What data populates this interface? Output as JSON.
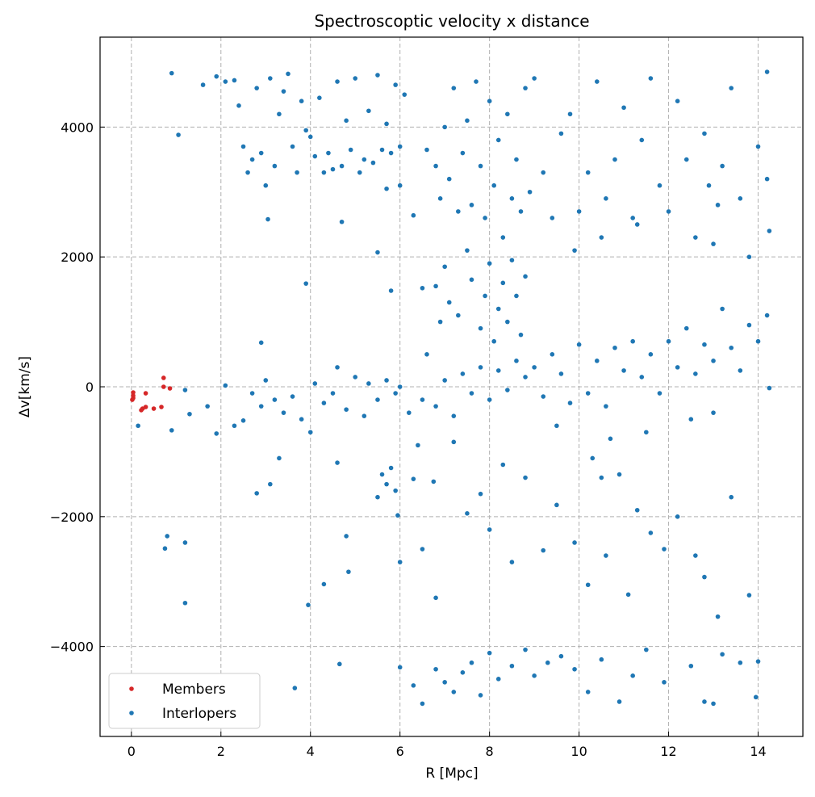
{
  "chart_data": {
    "type": "scatter",
    "title": "Spectroscoptic velocity x distance",
    "xlabel": "R [Mpc]",
    "ylabel": "Δv[km/s]",
    "xlim": [
      -0.7,
      15.0
    ],
    "ylim": [
      -5385,
      5385
    ],
    "xticks": [
      0,
      2,
      4,
      6,
      8,
      10,
      12,
      14
    ],
    "yticks": [
      -4000,
      -2000,
      0,
      2000,
      4000
    ],
    "grid": true,
    "legend": "lower-left",
    "series": [
      {
        "name": "Members",
        "color": "#d62728",
        "points": [
          [
            0.72,
            137
          ],
          [
            0.72,
            0
          ],
          [
            0.86,
            -25
          ],
          [
            0.04,
            -87
          ],
          [
            0.04,
            -137
          ],
          [
            0.02,
            -200
          ],
          [
            0.04,
            -174
          ],
          [
            0.32,
            -100
          ],
          [
            0.22,
            -360
          ],
          [
            0.25,
            -336
          ],
          [
            0.32,
            -311
          ],
          [
            0.5,
            -336
          ],
          [
            0.67,
            -311
          ]
        ]
      },
      {
        "name": "Interlopers",
        "color": "#1f77b4",
        "points": [
          [
            0.9,
            4830
          ],
          [
            1.05,
            3880
          ],
          [
            1.6,
            4650
          ],
          [
            1.9,
            4780
          ],
          [
            2.1,
            4700
          ],
          [
            2.3,
            4720
          ],
          [
            2.4,
            4330
          ],
          [
            2.5,
            3700
          ],
          [
            2.6,
            3300
          ],
          [
            2.7,
            3500
          ],
          [
            2.8,
            4600
          ],
          [
            2.9,
            3600
          ],
          [
            3.0,
            3100
          ],
          [
            3.1,
            4750
          ],
          [
            3.2,
            3400
          ],
          [
            3.3,
            4200
          ],
          [
            3.4,
            4550
          ],
          [
            3.5,
            4820
          ],
          [
            3.6,
            3700
          ],
          [
            3.7,
            3300
          ],
          [
            3.8,
            4400
          ],
          [
            3.9,
            3950
          ],
          [
            4.0,
            3850
          ],
          [
            4.1,
            3550
          ],
          [
            4.2,
            4450
          ],
          [
            4.3,
            3300
          ],
          [
            4.4,
            3600
          ],
          [
            4.5,
            3350
          ],
          [
            4.6,
            4700
          ],
          [
            4.7,
            3400
          ],
          [
            4.8,
            4100
          ],
          [
            4.9,
            3650
          ],
          [
            5.0,
            4750
          ],
          [
            5.1,
            3300
          ],
          [
            5.2,
            3500
          ],
          [
            5.3,
            4250
          ],
          [
            5.4,
            3450
          ],
          [
            5.5,
            4800
          ],
          [
            5.6,
            3650
          ],
          [
            5.7,
            4050
          ],
          [
            5.8,
            3600
          ],
          [
            5.9,
            4650
          ],
          [
            6.0,
            3700
          ],
          [
            6.1,
            4500
          ],
          [
            6.0,
            3100
          ],
          [
            5.7,
            3050
          ],
          [
            3.05,
            2580
          ],
          [
            4.7,
            2540
          ],
          [
            3.9,
            1590
          ],
          [
            5.5,
            2070
          ],
          [
            5.8,
            1480
          ],
          [
            2.9,
            680
          ],
          [
            6.3,
            2640
          ],
          [
            6.5,
            1520
          ],
          [
            6.6,
            3650
          ],
          [
            6.8,
            3400
          ],
          [
            6.9,
            2900
          ],
          [
            7.0,
            4000
          ],
          [
            7.1,
            3200
          ],
          [
            7.2,
            4600
          ],
          [
            7.3,
            2700
          ],
          [
            7.4,
            3600
          ],
          [
            7.5,
            4100
          ],
          [
            7.6,
            2800
          ],
          [
            7.7,
            4700
          ],
          [
            7.8,
            3400
          ],
          [
            7.9,
            2600
          ],
          [
            8.0,
            4400
          ],
          [
            8.1,
            3100
          ],
          [
            8.2,
            3800
          ],
          [
            8.3,
            2300
          ],
          [
            8.4,
            4200
          ],
          [
            8.5,
            2900
          ],
          [
            8.6,
            3500
          ],
          [
            8.7,
            2700
          ],
          [
            8.8,
            4600
          ],
          [
            8.9,
            3000
          ],
          [
            9.0,
            4750
          ],
          [
            9.2,
            3300
          ],
          [
            9.4,
            2600
          ],
          [
            9.6,
            3900
          ],
          [
            9.8,
            4200
          ],
          [
            10.0,
            2700
          ],
          [
            10.2,
            3300
          ],
          [
            10.4,
            4700
          ],
          [
            10.6,
            2900
          ],
          [
            10.8,
            3500
          ],
          [
            11.0,
            4300
          ],
          [
            11.2,
            2600
          ],
          [
            11.4,
            3800
          ],
          [
            11.6,
            4750
          ],
          [
            11.8,
            3100
          ],
          [
            12.0,
            2700
          ],
          [
            12.2,
            4400
          ],
          [
            12.4,
            3500
          ],
          [
            12.6,
            2300
          ],
          [
            12.8,
            3900
          ],
          [
            13.0,
            2200
          ],
          [
            13.2,
            3400
          ],
          [
            13.4,
            4600
          ],
          [
            13.6,
            2900
          ],
          [
            13.8,
            2000
          ],
          [
            14.0,
            3700
          ],
          [
            14.2,
            4850
          ],
          [
            14.25,
            2400
          ],
          [
            14.2,
            3200
          ],
          [
            13.1,
            2800
          ],
          [
            12.9,
            3100
          ],
          [
            11.3,
            2500
          ],
          [
            10.5,
            2300
          ],
          [
            9.9,
            2100
          ],
          [
            7.0,
            1850
          ],
          [
            7.1,
            1300
          ],
          [
            7.3,
            1100
          ],
          [
            7.5,
            2100
          ],
          [
            7.6,
            1650
          ],
          [
            7.8,
            900
          ],
          [
            7.9,
            1400
          ],
          [
            8.0,
            1900
          ],
          [
            8.1,
            700
          ],
          [
            8.2,
            1200
          ],
          [
            8.3,
            1600
          ],
          [
            8.4,
            1000
          ],
          [
            8.5,
            1950
          ],
          [
            8.6,
            1400
          ],
          [
            8.7,
            800
          ],
          [
            8.8,
            1700
          ],
          [
            6.8,
            1550
          ],
          [
            6.9,
            1000
          ],
          [
            1.2,
            -50
          ],
          [
            1.3,
            -420
          ],
          [
            1.7,
            -300
          ],
          [
            1.9,
            -720
          ],
          [
            2.1,
            20
          ],
          [
            2.3,
            -600
          ],
          [
            2.5,
            -520
          ],
          [
            2.7,
            -100
          ],
          [
            2.9,
            -300
          ],
          [
            3.0,
            100
          ],
          [
            3.2,
            -200
          ],
          [
            3.4,
            -400
          ],
          [
            3.6,
            -150
          ],
          [
            3.8,
            -500
          ],
          [
            4.0,
            -700
          ],
          [
            4.1,
            50
          ],
          [
            4.3,
            -250
          ],
          [
            4.5,
            -100
          ],
          [
            4.6,
            300
          ],
          [
            4.8,
            -350
          ],
          [
            5.0,
            150
          ],
          [
            5.2,
            -450
          ],
          [
            5.3,
            50
          ],
          [
            5.5,
            -200
          ],
          [
            5.7,
            100
          ],
          [
            5.9,
            -100
          ],
          [
            6.0,
            0
          ],
          [
            6.2,
            -400
          ],
          [
            6.4,
            -900
          ],
          [
            6.5,
            -200
          ],
          [
            6.6,
            500
          ],
          [
            6.8,
            -300
          ],
          [
            7.0,
            100
          ],
          [
            7.2,
            -450
          ],
          [
            7.4,
            200
          ],
          [
            7.6,
            -100
          ],
          [
            7.8,
            300
          ],
          [
            8.0,
            -200
          ],
          [
            8.2,
            250
          ],
          [
            8.4,
            -50
          ],
          [
            8.6,
            400
          ],
          [
            8.8,
            150
          ],
          [
            9.0,
            300
          ],
          [
            9.2,
            -150
          ],
          [
            9.4,
            500
          ],
          [
            9.6,
            200
          ],
          [
            9.8,
            -250
          ],
          [
            10.0,
            650
          ],
          [
            10.2,
            -100
          ],
          [
            10.4,
            400
          ],
          [
            10.6,
            -300
          ],
          [
            10.8,
            600
          ],
          [
            11.0,
            250
          ],
          [
            11.2,
            700
          ],
          [
            11.4,
            150
          ],
          [
            11.6,
            500
          ],
          [
            11.8,
            -100
          ],
          [
            12.0,
            700
          ],
          [
            12.2,
            300
          ],
          [
            12.4,
            900
          ],
          [
            12.6,
            200
          ],
          [
            12.8,
            650
          ],
          [
            13.0,
            400
          ],
          [
            13.2,
            1200
          ],
          [
            13.4,
            600
          ],
          [
            13.6,
            250
          ],
          [
            13.8,
            950
          ],
          [
            14.0,
            700
          ],
          [
            14.2,
            1100
          ],
          [
            14.25,
            -20
          ],
          [
            13.0,
            -400
          ],
          [
            12.5,
            -500
          ],
          [
            11.5,
            -700
          ],
          [
            10.7,
            -800
          ],
          [
            9.5,
            -600
          ],
          [
            0.15,
            -600
          ],
          [
            0.9,
            -670
          ],
          [
            0.8,
            -2300
          ],
          [
            0.75,
            -2490
          ],
          [
            1.2,
            -2400
          ],
          [
            1.2,
            -3330
          ],
          [
            2.8,
            -1640
          ],
          [
            3.1,
            -1500
          ],
          [
            3.3,
            -1100
          ],
          [
            3.65,
            -4640
          ],
          [
            3.95,
            -3360
          ],
          [
            4.3,
            -3040
          ],
          [
            4.65,
            -4270
          ],
          [
            4.6,
            -1170
          ],
          [
            4.8,
            -2300
          ],
          [
            4.85,
            -2850
          ],
          [
            5.5,
            -1700
          ],
          [
            5.6,
            -1350
          ],
          [
            5.7,
            -1500
          ],
          [
            5.8,
            -1250
          ],
          [
            5.9,
            -1600
          ],
          [
            5.95,
            -1980
          ],
          [
            6.0,
            -2700
          ],
          [
            6.3,
            -1420
          ],
          [
            6.5,
            -2500
          ],
          [
            6.75,
            -1460
          ],
          [
            6.8,
            -3250
          ],
          [
            7.2,
            -850
          ],
          [
            7.5,
            -1950
          ],
          [
            7.8,
            -1650
          ],
          [
            8.0,
            -2200
          ],
          [
            8.3,
            -1200
          ],
          [
            8.5,
            -2700
          ],
          [
            8.8,
            -1400
          ],
          [
            9.2,
            -2520
          ],
          [
            9.5,
            -1820
          ],
          [
            9.9,
            -2400
          ],
          [
            10.2,
            -3050
          ],
          [
            10.3,
            -1100
          ],
          [
            10.5,
            -1400
          ],
          [
            10.6,
            -2600
          ],
          [
            10.9,
            -1350
          ],
          [
            11.1,
            -3200
          ],
          [
            11.3,
            -1900
          ],
          [
            11.6,
            -2250
          ],
          [
            11.9,
            -2500
          ],
          [
            12.2,
            -2000
          ],
          [
            12.6,
            -2600
          ],
          [
            12.8,
            -2930
          ],
          [
            13.1,
            -3540
          ],
          [
            13.4,
            -1700
          ],
          [
            13.8,
            -3210
          ],
          [
            6.0,
            -4320
          ],
          [
            6.3,
            -4600
          ],
          [
            6.5,
            -4880
          ],
          [
            6.8,
            -4350
          ],
          [
            7.0,
            -4550
          ],
          [
            7.2,
            -4700
          ],
          [
            7.4,
            -4400
          ],
          [
            7.6,
            -4250
          ],
          [
            7.8,
            -4750
          ],
          [
            8.0,
            -4100
          ],
          [
            8.2,
            -4500
          ],
          [
            8.5,
            -4300
          ],
          [
            8.8,
            -4050
          ],
          [
            9.0,
            -4450
          ],
          [
            9.3,
            -4250
          ],
          [
            9.6,
            -4150
          ],
          [
            9.9,
            -4350
          ],
          [
            10.2,
            -4700
          ],
          [
            10.5,
            -4200
          ],
          [
            10.9,
            -4850
          ],
          [
            11.2,
            -4450
          ],
          [
            11.5,
            -4050
          ],
          [
            11.9,
            -4550
          ],
          [
            12.5,
            -4300
          ],
          [
            12.8,
            -4850
          ],
          [
            13.0,
            -4880
          ],
          [
            13.2,
            -4120
          ],
          [
            13.6,
            -4250
          ],
          [
            14.0,
            -4230
          ],
          [
            13.95,
            -4780
          ]
        ]
      }
    ]
  }
}
